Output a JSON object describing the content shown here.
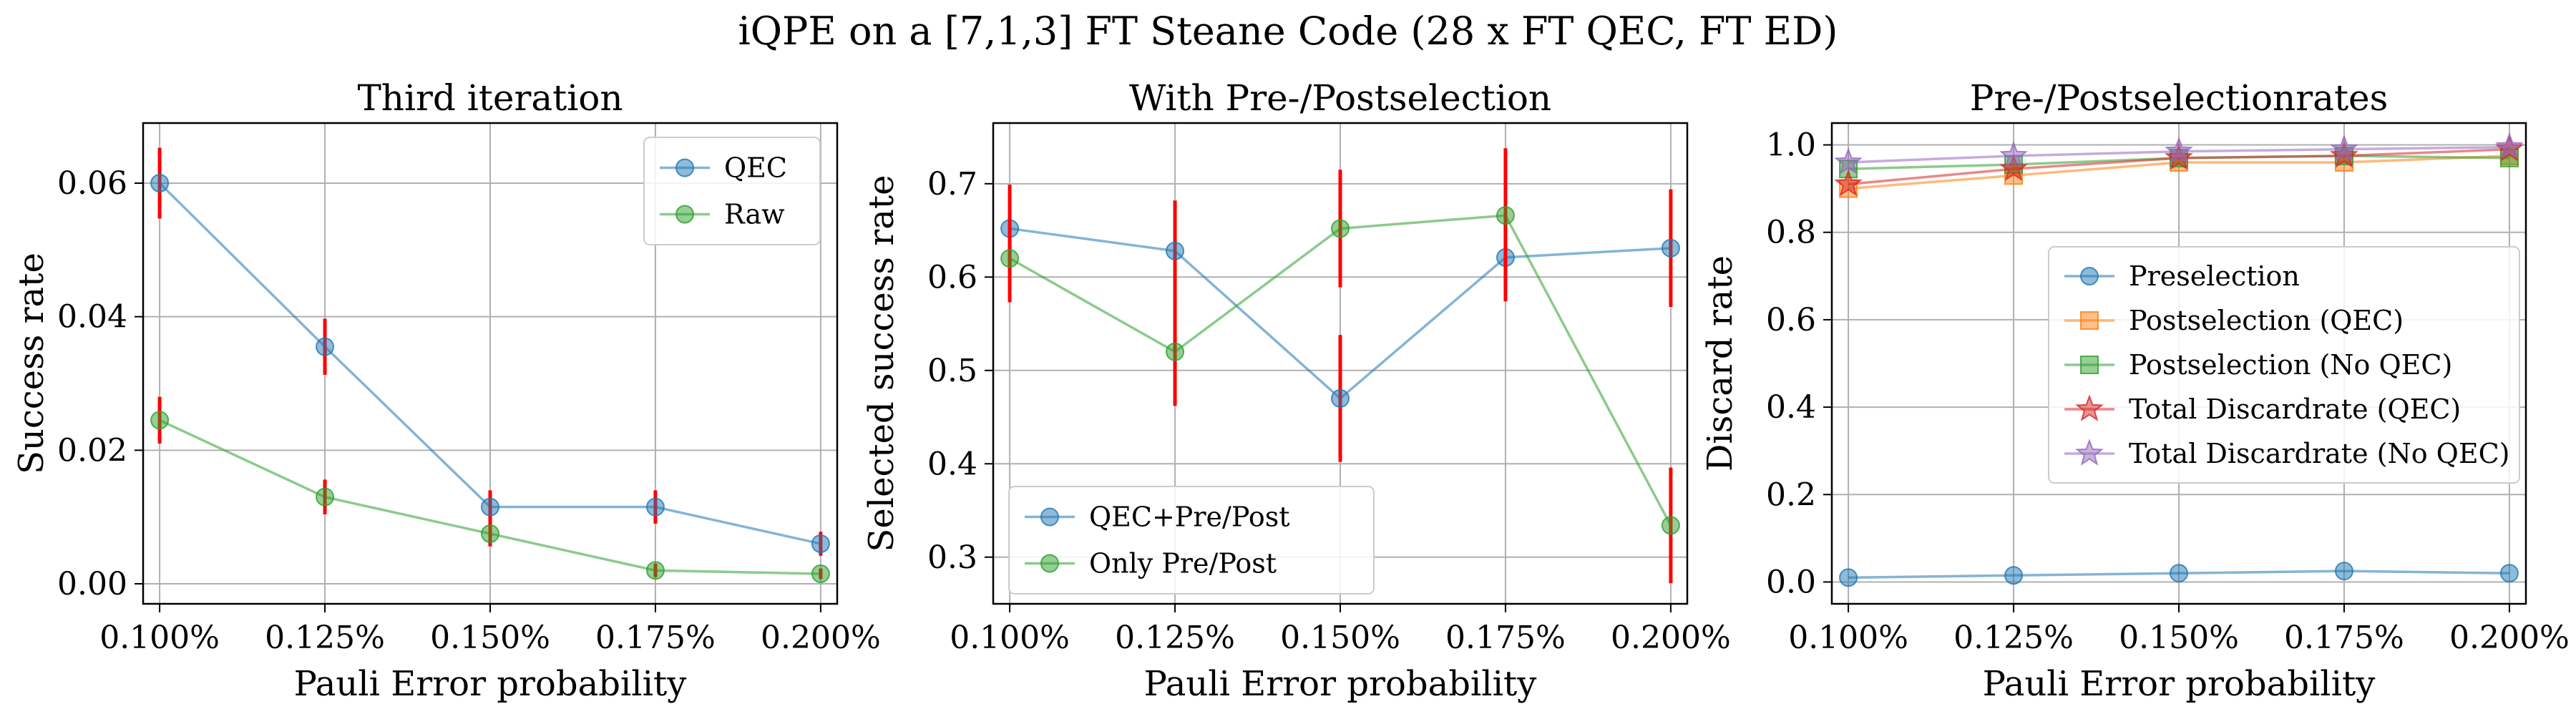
{
  "figure": {
    "suptitle": "iQPE on a [7,1,3] FT Steane Code (28 x FT QEC, FT ED)"
  },
  "chart_data": [
    {
      "type": "line",
      "title": "Third iteration",
      "xlabel": "Pauli Error probability",
      "ylabel": "Success rate",
      "x": [
        0.1,
        0.125,
        0.15,
        0.175,
        0.2
      ],
      "xticklabels": [
        "0.100%",
        "0.125%",
        "0.150%",
        "0.175%",
        "0.200%"
      ],
      "xlim": [
        0.0975,
        0.2025
      ],
      "ylim": [
        -0.003,
        0.069
      ],
      "yticks": [
        0.0,
        0.02,
        0.04,
        0.06
      ],
      "yticklabels": [
        "0.00",
        "0.02",
        "0.04",
        "0.06"
      ],
      "grid": true,
      "legend": "top-right",
      "series": [
        {
          "name": "QEC",
          "color": "#1f77b4",
          "marker": "circle",
          "values": [
            0.06,
            0.0355,
            0.0115,
            0.0115,
            0.006
          ],
          "errors": [
            0.0053,
            0.0042,
            0.0025,
            0.0025,
            0.0018
          ]
        },
        {
          "name": "Raw",
          "color": "#2ca02c",
          "marker": "circle",
          "values": [
            0.0245,
            0.013,
            0.0075,
            0.002,
            0.0015
          ],
          "errors": [
            0.0035,
            0.0026,
            0.0019,
            0.001,
            0.0008
          ]
        }
      ],
      "error_color": "#ff0000"
    },
    {
      "type": "line",
      "title": "With Pre-/Postselection",
      "xlabel": "Pauli Error probability",
      "ylabel": "Selected success rate",
      "x": [
        0.1,
        0.125,
        0.15,
        0.175,
        0.2
      ],
      "xticklabels": [
        "0.100%",
        "0.125%",
        "0.150%",
        "0.175%",
        "0.200%"
      ],
      "xlim": [
        0.0975,
        0.2025
      ],
      "ylim": [
        0.25,
        0.765
      ],
      "yticks": [
        0.3,
        0.4,
        0.5,
        0.6,
        0.7
      ],
      "yticklabels": [
        "0.3",
        "0.4",
        "0.5",
        "0.6",
        "0.7"
      ],
      "grid": true,
      "legend": "bottom-left",
      "series": [
        {
          "name": "QEC+Pre/Post",
          "color": "#1f77b4",
          "marker": "circle",
          "values": [
            0.652,
            0.628,
            0.47,
            0.621,
            0.631
          ],
          "errors": [
            0.047,
            0.054,
            0.068,
            0.047,
            0.063
          ]
        },
        {
          "name": "Only Pre/Post",
          "color": "#2ca02c",
          "marker": "circle",
          "values": [
            0.62,
            0.52,
            0.652,
            0.666,
            0.334
          ],
          "errors": [
            0.047,
            0.058,
            0.063,
            0.072,
            0.062
          ]
        }
      ],
      "error_color": "#ff0000"
    },
    {
      "type": "line",
      "title": "Pre-/Postselectionrates",
      "xlabel": "Pauli Error probability",
      "ylabel": "Discard rate",
      "x": [
        0.1,
        0.125,
        0.15,
        0.175,
        0.2
      ],
      "xticklabels": [
        "0.100%",
        "0.125%",
        "0.150%",
        "0.175%",
        "0.200%"
      ],
      "xlim": [
        0.0975,
        0.2025
      ],
      "ylim": [
        -0.05,
        1.05
      ],
      "yticks": [
        0.0,
        0.2,
        0.4,
        0.6,
        0.8,
        1.0
      ],
      "yticklabels": [
        "0.0",
        "0.2",
        "0.4",
        "0.6",
        "0.8",
        "1.0"
      ],
      "grid": true,
      "legend": "center-right",
      "series": [
        {
          "name": "Preselection",
          "color": "#1f77b4",
          "marker": "circle",
          "values": [
            0.01,
            0.015,
            0.02,
            0.025,
            0.02
          ]
        },
        {
          "name": "Postselection (QEC)",
          "color": "#ff7f0e",
          "marker": "square",
          "values": [
            0.9,
            0.93,
            0.96,
            0.96,
            0.975
          ]
        },
        {
          "name": "Postselection (No QEC)",
          "color": "#2ca02c",
          "marker": "square",
          "values": [
            0.945,
            0.955,
            0.97,
            0.975,
            0.97
          ]
        },
        {
          "name": "Total Discardrate (QEC)",
          "color": "#d62728",
          "marker": "star",
          "values": [
            0.91,
            0.945,
            0.97,
            0.975,
            0.99
          ]
        },
        {
          "name": "Total Discardrate (No QEC)",
          "color": "#9467bd",
          "marker": "star",
          "values": [
            0.96,
            0.975,
            0.985,
            0.99,
            0.995
          ]
        }
      ]
    }
  ]
}
